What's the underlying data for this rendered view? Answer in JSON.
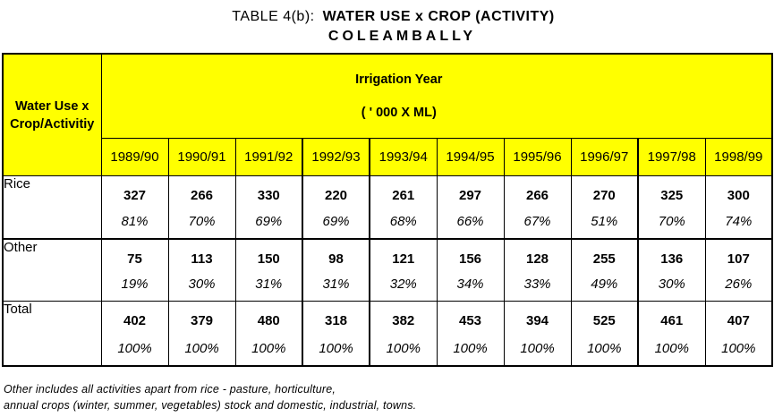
{
  "title": {
    "prefix": "TABLE 4(b):",
    "main": "WATER USE x CROP (ACTIVITY)",
    "subtitle": "COLEAMBALLY"
  },
  "colors": {
    "header_bg": "#FFFF00",
    "border": "#000000",
    "text": "#000000"
  },
  "table": {
    "corner_label_line1": "Water Use x",
    "corner_label_line2": "Crop/Activitiy",
    "group_header": {
      "title": "Irrigation Year",
      "units": "( ' 000 X ML)"
    },
    "years": [
      "1989/90",
      "1990/91",
      "1991/92",
      "1992/93",
      "1993/94",
      "1994/95",
      "1995/96",
      "1996/97",
      "1997/98",
      "1998/99"
    ],
    "rows": [
      {
        "label": "Rice",
        "values": [
          "327",
          "266",
          "330",
          "220",
          "261",
          "297",
          "266",
          "270",
          "325",
          "300"
        ],
        "pcts": [
          "81%",
          "70%",
          "69%",
          "69%",
          "68%",
          "66%",
          "67%",
          "51%",
          "70%",
          "74%"
        ]
      },
      {
        "label": "Other",
        "values": [
          "75",
          "113",
          "150",
          "98",
          "121",
          "156",
          "128",
          "255",
          "136",
          "107"
        ],
        "pcts": [
          "19%",
          "30%",
          "31%",
          "31%",
          "32%",
          "34%",
          "33%",
          "49%",
          "30%",
          "26%"
        ]
      },
      {
        "label": "Total",
        "values": [
          "402",
          "379",
          "480",
          "318",
          "382",
          "453",
          "394",
          "525",
          "461",
          "407"
        ],
        "pcts": [
          "100%",
          "100%",
          "100%",
          "100%",
          "100%",
          "100%",
          "100%",
          "100%",
          "100%",
          "100%"
        ]
      }
    ]
  },
  "footnotes": [
    "Other includes all activities apart from rice - pasture, horticulture,",
    "annual crops (winter, summer, vegetables) stock and domestic, industrial, towns."
  ]
}
